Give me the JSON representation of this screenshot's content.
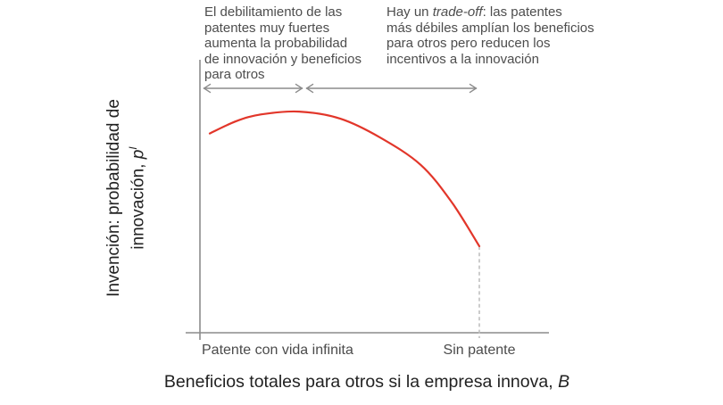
{
  "figure": {
    "y_title_line1": "Invención: probabilidad de",
    "y_title_line2_pre": "innovación, ",
    "y_title_var": "p",
    "y_title_var_sup": "I",
    "x_title_pre": "Beneficios totales para otros si la empresa innova, ",
    "x_title_var": "B",
    "x_tick_left": "Patente con vida infinita",
    "x_tick_right": "Sin patente"
  },
  "annotations": {
    "left_lines": [
      "El debilitamiento de las",
      "patentes muy fuertes",
      "aumenta la probabilidad",
      "de innovación y beneficios",
      "para otros"
    ],
    "right": {
      "pre": "Hay un ",
      "italic": "trade-off",
      "post_line1": ": las patentes",
      "rest_lines": [
        "más débiles amplían los beneficios",
        "para otros pero reducen los",
        "incentivos a la innovación"
      ]
    }
  },
  "colors": {
    "curve": "#e2362a",
    "axis": "#8c8c8c",
    "dashed_line": "#bcbcbc",
    "arrow": "#8c8c8c",
    "annotation_text": "#4d4d4d",
    "tick_label_text": "#4b4b4b",
    "axis_title_text": "#222222"
  },
  "chart_data": {
    "type": "line",
    "title": "",
    "xlabel": "Beneficios totales para otros si la empresa innova, B",
    "ylabel": "Invención: probabilidad de innovación, pᴵ",
    "x_tick_labels": [
      "Patente con vida infinita",
      "Sin patente"
    ],
    "x_range": [
      0,
      1
    ],
    "y_range": [
      0,
      1
    ],
    "x_units_note": "B relativo: 0 = origen (patente con vida infinita), 1 = sin patente",
    "y_units_note": "probabilidad relativa (el gráfico no muestra escala numérica)",
    "grid": false,
    "legend": false,
    "series": [
      {
        "name": "Probabilidad de innovación p(B)",
        "color": "#e2362a",
        "points": [
          [
            0.035,
            0.73
          ],
          [
            0.13,
            0.775
          ],
          [
            0.22,
            0.8
          ],
          [
            0.355,
            0.81
          ],
          [
            0.5,
            0.785
          ],
          [
            0.645,
            0.715
          ],
          [
            0.79,
            0.615
          ],
          [
            0.9,
            0.48
          ],
          [
            1.0,
            0.317
          ]
        ]
      }
    ],
    "peak_point": [
      0.355,
      0.81
    ],
    "dashed_guide_at_x": 1.0,
    "range_arrows": [
      {
        "label": "debilitamiento de patentes fuertes",
        "from_x": 0.01,
        "to_x": 0.37
      },
      {
        "label": "trade-off",
        "from_x": 0.38,
        "to_x": 0.99
      }
    ],
    "annotations": [
      "El debilitamiento de las patentes muy fuertes aumenta la probabilidad de innovación y beneficios para otros",
      "Hay un trade-off: las patentes más débiles amplían los beneficios para otros pero reducen los incentivos a la innovación"
    ]
  }
}
